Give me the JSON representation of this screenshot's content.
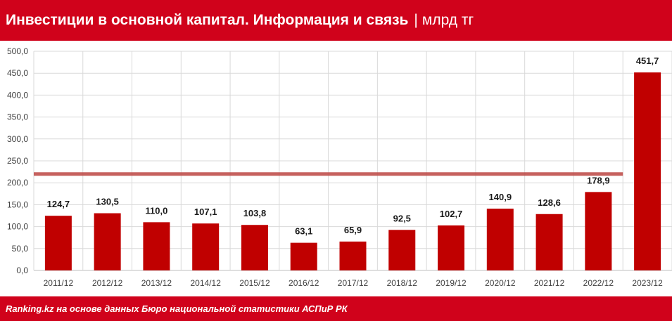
{
  "header": {
    "title": "Инвестиции в основной капитал. Информация и связь",
    "separator": "|",
    "unit": "млрд тг"
  },
  "footer": {
    "source": "Ranking.kz на основе данных Бюро национальной статистики АСПиР РК"
  },
  "colors": {
    "brand_red": "#d0021b",
    "bar": "#c00000",
    "reference_line": "#c0504d",
    "grid": "#d9d9d9"
  },
  "chart_data": {
    "type": "bar",
    "title": "Инвестиции в основной капитал. Информация и связь",
    "xlabel": "",
    "ylabel": "",
    "categories": [
      "2011/12",
      "2012/12",
      "2013/12",
      "2014/12",
      "2015/12",
      "2016/12",
      "2017/12",
      "2018/12",
      "2019/12",
      "2020/12",
      "2021/12",
      "2022/12",
      "2023/12"
    ],
    "values": [
      124.7,
      130.5,
      110.0,
      107.1,
      103.8,
      63.1,
      65.9,
      92.5,
      102.7,
      140.9,
      128.6,
      178.9,
      451.7
    ],
    "value_labels": [
      "124,7",
      "130,5",
      "110,0",
      "107,1",
      "103,8",
      "63,1",
      "65,9",
      "92,5",
      "102,7",
      "140,9",
      "128,6",
      "178,9",
      "451,7"
    ],
    "ylim": [
      0,
      500
    ],
    "yticks": [
      0,
      50,
      100,
      150,
      200,
      250,
      300,
      350,
      400,
      450,
      500
    ],
    "ytick_labels": [
      "0,0",
      "50,0",
      "100,0",
      "150,0",
      "200,0",
      "250,0",
      "300,0",
      "350,0",
      "400,0",
      "450,0",
      "500,0"
    ],
    "reference_line": {
      "value": 220,
      "x_end_category": "2022/12"
    },
    "grid": true,
    "legend": "none"
  }
}
